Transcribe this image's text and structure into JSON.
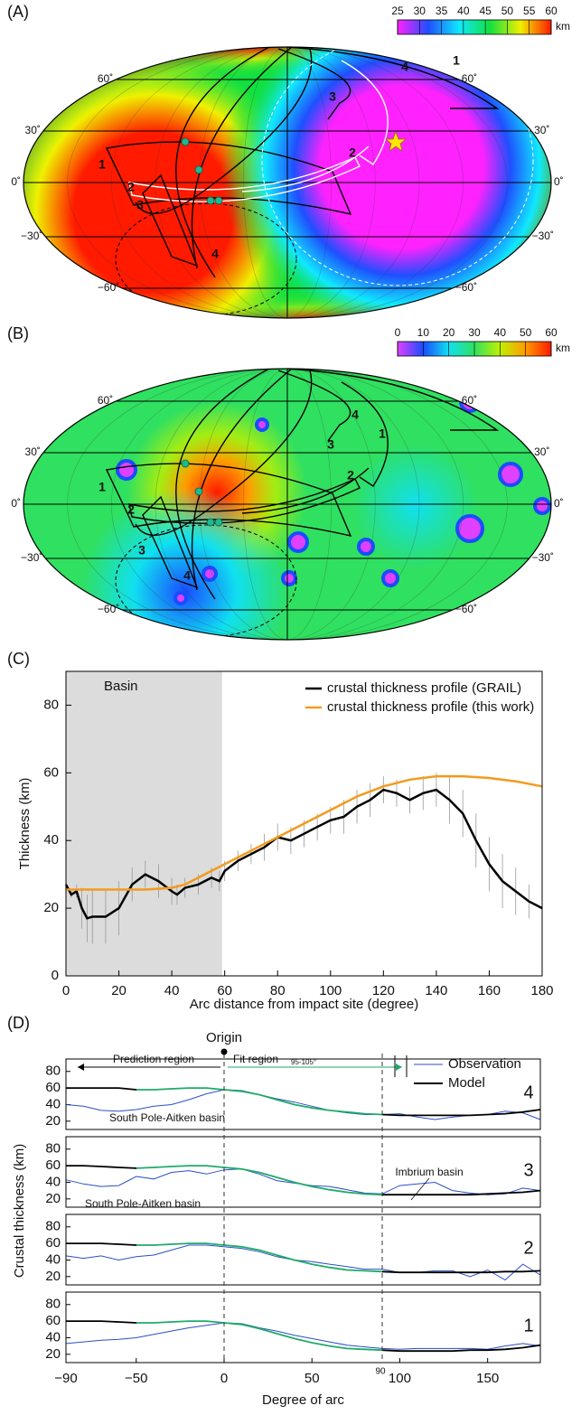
{
  "chart_data": [
    {
      "type": "map",
      "panel_label": "(A)",
      "colorbar": {
        "lim": [
          25,
          60
        ],
        "ticks": [
          25,
          30,
          35,
          40,
          45,
          50,
          55,
          60
        ],
        "unit": "km",
        "colors": [
          "#ff22ff",
          "#1f4fff",
          "#10e8ff",
          "#10e040",
          "#f0f000",
          "#ff1a00"
        ]
      },
      "lat_labels": [
        "60˚",
        "30˚",
        "0˚",
        "−30˚",
        "−60˚"
      ],
      "region_labels": [
        "1",
        "2",
        "3",
        "4"
      ]
    },
    {
      "type": "map",
      "panel_label": "(B)",
      "colorbar": {
        "lim": [
          0,
          60
        ],
        "ticks": [
          0,
          10,
          20,
          30,
          40,
          50,
          60
        ],
        "unit": "km",
        "colors": [
          "#e040ff",
          "#1a4cff",
          "#10e0f0",
          "#30e060",
          "#c0f000",
          "#ff9a00",
          "#ff1a00"
        ]
      },
      "lat_labels": [
        "60˚",
        "30˚",
        "0˚",
        "−30˚",
        "−60˚"
      ],
      "region_labels": [
        "1",
        "2",
        "3",
        "4"
      ]
    },
    {
      "type": "line",
      "panel_label": "(C)",
      "xlabel": "Arc distance from impact site (degree)",
      "ylabel": "Thickness (km)",
      "xlim": [
        0,
        180
      ],
      "xticks": [
        0,
        20,
        40,
        60,
        80,
        100,
        120,
        140,
        160,
        180
      ],
      "ylim": [
        0,
        90
      ],
      "yticks": [
        0,
        20,
        40,
        60,
        80
      ],
      "shade": [
        0,
        59
      ],
      "shade_label": "Basin",
      "series": [
        {
          "name": "crustal thickness profile (GRAIL)",
          "color": "#000000",
          "x": [
            0,
            2,
            4,
            6,
            8,
            10,
            15,
            20,
            25,
            30,
            35,
            40,
            42,
            45,
            50,
            55,
            58,
            60,
            65,
            70,
            75,
            80,
            85,
            90,
            95,
            100,
            105,
            110,
            115,
            120,
            125,
            130,
            135,
            140,
            145,
            150,
            155,
            160,
            165,
            170,
            175,
            180
          ],
          "values": [
            27,
            24,
            25,
            20,
            17,
            17.5,
            17.5,
            20,
            27,
            30,
            28,
            25,
            24,
            26,
            27,
            29,
            28,
            31,
            34,
            36,
            38,
            41,
            40,
            42,
            44,
            46,
            47,
            50,
            52,
            55,
            54,
            52,
            54,
            55,
            52,
            48,
            40,
            33,
            28,
            25,
            22,
            20
          ],
          "errors": [
            1,
            1,
            2,
            6,
            7,
            8,
            8,
            8,
            5,
            4,
            5,
            4,
            3,
            3,
            3,
            3,
            3,
            3,
            3,
            3,
            4,
            4,
            4,
            4,
            4,
            4,
            5,
            5,
            5,
            4,
            4,
            4,
            5,
            5,
            7,
            7,
            8,
            8,
            8,
            7,
            5,
            4
          ]
        },
        {
          "name": "crustal thickness profile (this work)",
          "color": "#f39a1e",
          "x": [
            0,
            10,
            20,
            30,
            40,
            45,
            50,
            55,
            60,
            70,
            80,
            90,
            100,
            110,
            120,
            130,
            140,
            150,
            160,
            170,
            180
          ],
          "values": [
            25.5,
            25.5,
            25.5,
            25.5,
            26,
            27,
            29,
            31,
            33,
            37,
            41,
            45,
            49,
            53,
            56,
            58,
            59,
            59,
            58.5,
            57.5,
            56
          ]
        }
      ]
    },
    {
      "type": "stacked-lines",
      "panel_label": "(D)",
      "xlabel": "Degree of arc",
      "ylabel": "Crustal thickness (km)",
      "xlim": [
        -90,
        180
      ],
      "xticks": [
        {
          "value": -90,
          "label": "−90"
        },
        {
          "value": -50,
          "label": "−50"
        },
        0,
        50,
        100,
        150
      ],
      "ylim": [
        10,
        95
      ],
      "yticks": [
        20,
        40,
        60,
        80
      ],
      "vlines": [
        0,
        90
      ],
      "origin_label": "Origin",
      "prediction_label": "Prediction region",
      "fit_label": "Fit region",
      "fit_range_label": "95-105°",
      "model_fit_xlim": [
        -50,
        90
      ],
      "fit_color": "#1faa6a",
      "legend": [
        "Observation",
        "Model"
      ],
      "observation_color": "#2a4fc4",
      "model_color": "#000000",
      "x": [
        -90,
        -80,
        -70,
        -60,
        -50,
        -40,
        -30,
        -20,
        -10,
        0,
        10,
        20,
        30,
        40,
        50,
        60,
        70,
        80,
        90,
        100,
        110,
        120,
        130,
        140,
        150,
        160,
        170,
        180
      ],
      "subplots": [
        {
          "label": "4",
          "annotations": [
            "South Pole-Aitken basin"
          ],
          "observation": [
            40,
            38,
            33,
            32,
            34,
            38,
            40,
            46,
            53,
            58,
            57,
            52,
            47,
            43,
            38,
            33,
            30,
            28,
            28,
            29,
            25,
            22,
            25,
            27,
            28,
            32,
            30,
            22
          ],
          "model": [
            60,
            60,
            60,
            60,
            58,
            58,
            59,
            60,
            60,
            58,
            56,
            52,
            46,
            40,
            36,
            33,
            31,
            29,
            28,
            27,
            27,
            27,
            27,
            27,
            28,
            29,
            31,
            34
          ]
        },
        {
          "label": "3",
          "annotations": [
            "South Pole-Aitken basin",
            "Imbrium basin"
          ],
          "observation": [
            43,
            38,
            35,
            36,
            47,
            44,
            52,
            54,
            50,
            55,
            56,
            50,
            42,
            39,
            36,
            35,
            31,
            27,
            26,
            36,
            38,
            40,
            30,
            27,
            25,
            26,
            33,
            30
          ],
          "model": [
            60,
            60,
            59,
            58,
            57,
            58,
            59,
            60,
            60,
            58,
            56,
            52,
            46,
            40,
            35,
            31,
            28,
            26,
            25,
            25,
            25,
            25,
            25,
            25,
            26,
            27,
            28,
            30
          ]
        },
        {
          "label": "2",
          "annotations": [],
          "observation": [
            45,
            42,
            45,
            40,
            44,
            46,
            52,
            58,
            58,
            56,
            54,
            50,
            44,
            40,
            38,
            35,
            32,
            29,
            29,
            25,
            25,
            27,
            27,
            20,
            28,
            16,
            35,
            22
          ],
          "model": [
            60,
            60,
            60,
            59,
            58,
            58,
            59,
            60,
            60,
            58,
            56,
            52,
            46,
            40,
            35,
            31,
            28,
            27,
            26,
            25,
            25,
            25,
            25,
            25,
            25,
            26,
            26,
            27
          ]
        },
        {
          "label": "1",
          "annotations": [],
          "observation": [
            33,
            35,
            37,
            38,
            40,
            44,
            48,
            52,
            55,
            58,
            57,
            52,
            48,
            43,
            39,
            35,
            31,
            29,
            27,
            26,
            27,
            27,
            27,
            27,
            26,
            30,
            33,
            30
          ],
          "model": [
            60,
            60,
            60,
            59,
            58,
            58,
            59,
            60,
            60,
            58,
            56,
            51,
            45,
            39,
            34,
            30,
            27,
            26,
            25,
            24,
            24,
            24,
            24,
            25,
            25,
            26,
            28,
            31
          ]
        }
      ]
    }
  ]
}
